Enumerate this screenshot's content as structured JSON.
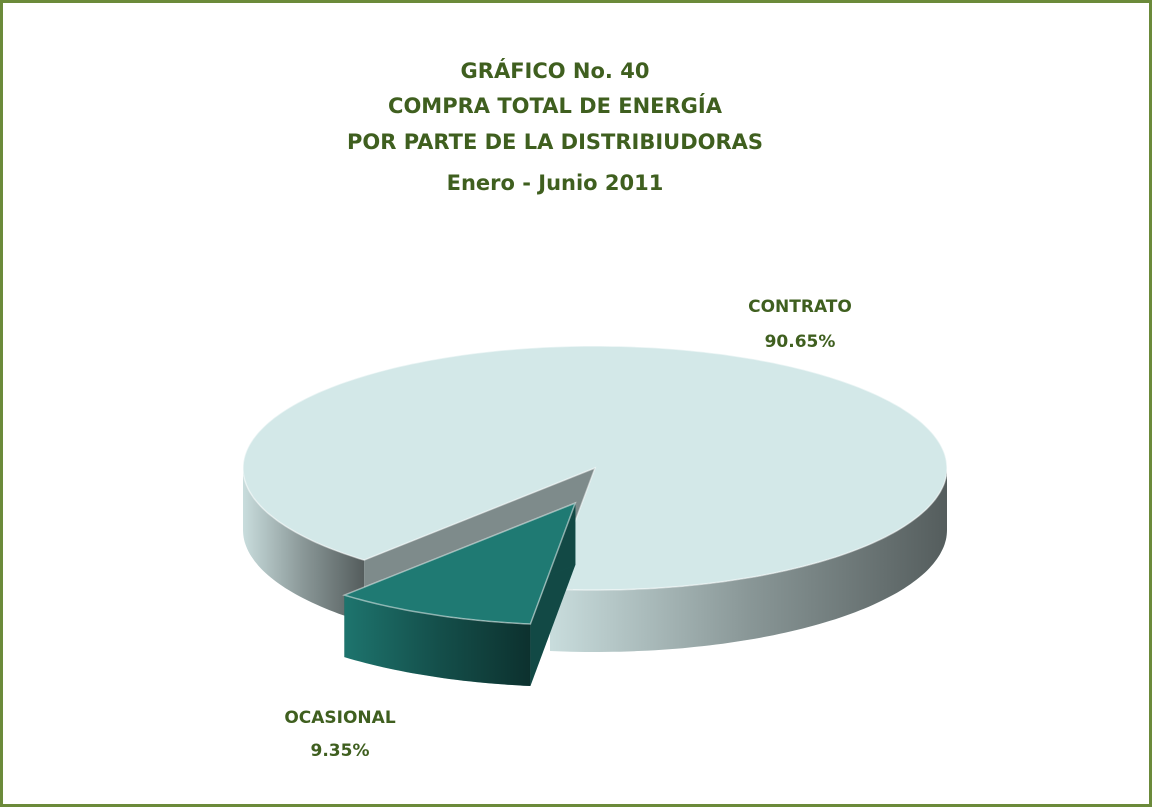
{
  "chart_data": {
    "type": "pie",
    "title": [
      "GRÁFICO No. 40",
      "COMPRA TOTAL DE ENERGÍA",
      "POR PARTE DE LA DISTRIBIUDORAS",
      "Enero - Junio  2011"
    ],
    "categories": [
      "CONTRATO",
      "OCASIONAL"
    ],
    "values": [
      90.65,
      9.35
    ],
    "value_labels": [
      "90.65%",
      "9.35%"
    ],
    "colors": [
      "#d3e8e8",
      "#1f7a73"
    ]
  }
}
